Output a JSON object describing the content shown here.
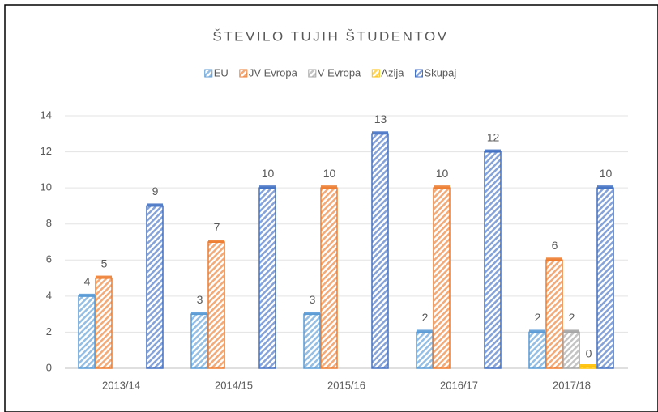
{
  "chart_data": {
    "type": "bar",
    "title": "ŠTEVILO TUJIH ŠTUDENTOV",
    "categories": [
      "2013/14",
      "2014/15",
      "2015/16",
      "2016/17",
      "2017/18"
    ],
    "series": [
      {
        "name": "EU",
        "color": "#5b9bd5",
        "values": [
          4,
          3,
          3,
          2,
          2
        ]
      },
      {
        "name": "JV Evropa",
        "color": "#ed7d31",
        "values": [
          5,
          7,
          10,
          10,
          6
        ]
      },
      {
        "name": "V Evropa",
        "color": "#a5a5a5",
        "values": [
          null,
          null,
          null,
          null,
          2
        ]
      },
      {
        "name": "Azija",
        "color": "#ffc000",
        "values": [
          null,
          null,
          null,
          null,
          0
        ]
      },
      {
        "name": "Skupaj",
        "color": "#4472c4",
        "values": [
          9,
          10,
          13,
          12,
          10
        ]
      }
    ],
    "ylim": [
      0,
      14
    ],
    "yticks": [
      0,
      2,
      4,
      6,
      8,
      10,
      12,
      14
    ],
    "grid": true,
    "legend": "top"
  }
}
